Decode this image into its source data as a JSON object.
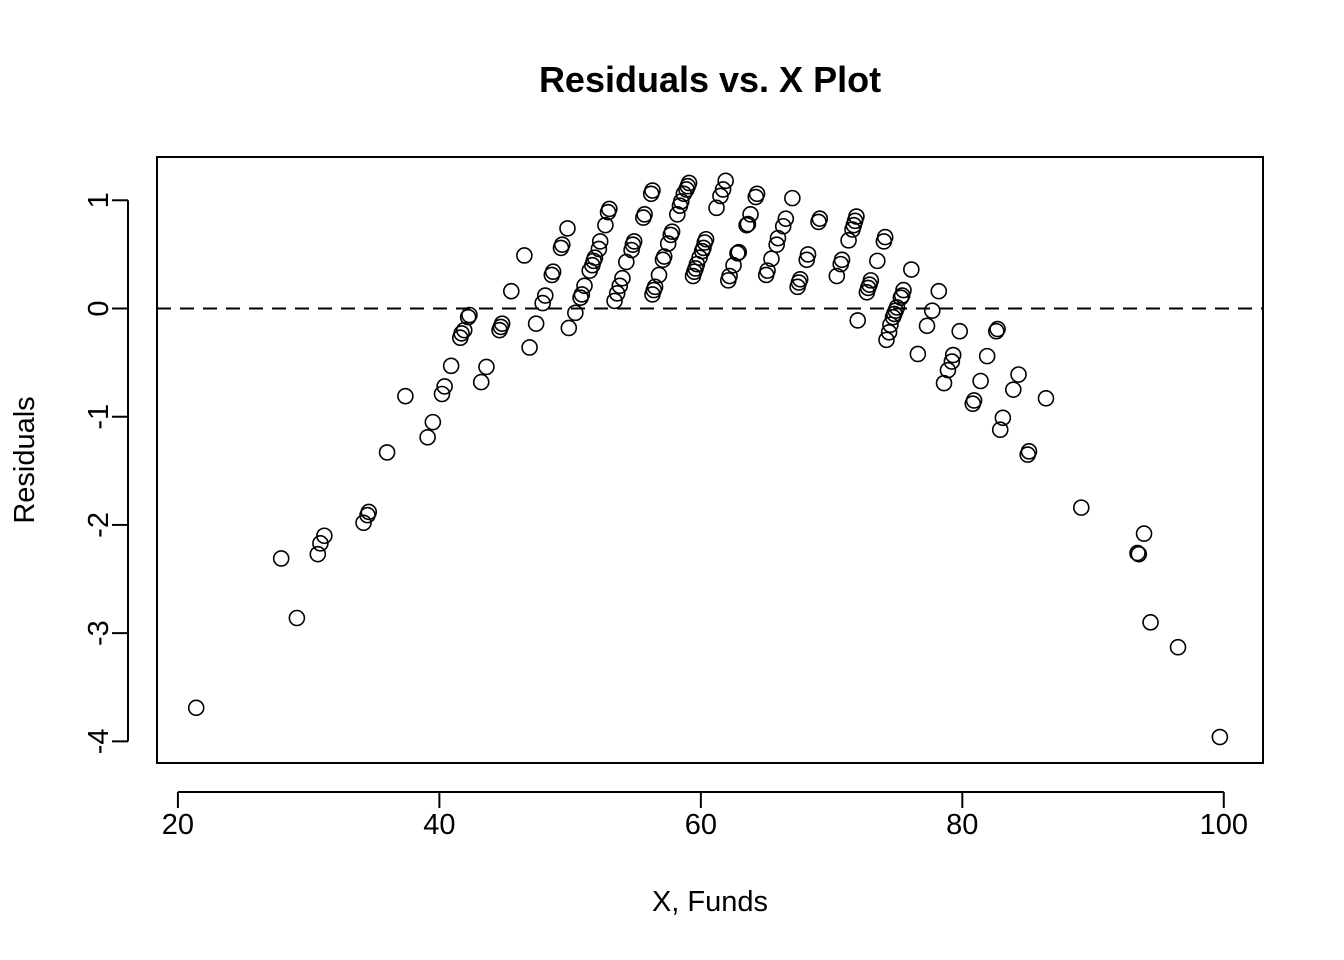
{
  "chart_data": {
    "type": "scatter",
    "title": "Residuals vs. X Plot",
    "xlabel": "X, Funds",
    "ylabel": "Residuals",
    "xlim": [
      18.4,
      103.0
    ],
    "ylim": [
      -4.2,
      1.4
    ],
    "xticks": [
      20,
      40,
      60,
      80,
      100
    ],
    "xtick_labels": [
      "20",
      "40",
      "60",
      "80",
      "100"
    ],
    "yticks": [
      -4,
      -3,
      -2,
      -1,
      0,
      1
    ],
    "ytick_labels": [
      "-4",
      "-3",
      "-2",
      "-1",
      "0",
      "1"
    ],
    "reference_line": {
      "y": 0,
      "style": "dashed"
    },
    "grid": false,
    "legend": "none",
    "marker": "open-circle",
    "color": "#000000",
    "points": [
      [
        21.4,
        -3.69
      ],
      [
        27.9,
        -2.31
      ],
      [
        29.1,
        -2.86
      ],
      [
        30.7,
        -2.27
      ],
      [
        30.9,
        -2.17
      ],
      [
        31.2,
        -2.1
      ],
      [
        34.2,
        -1.98
      ],
      [
        34.5,
        -1.91
      ],
      [
        34.6,
        -1.88
      ],
      [
        36.0,
        -1.33
      ],
      [
        37.4,
        -0.81
      ],
      [
        39.1,
        -1.19
      ],
      [
        39.5,
        -1.05
      ],
      [
        40.2,
        -0.79
      ],
      [
        40.4,
        -0.72
      ],
      [
        40.9,
        -0.53
      ],
      [
        41.6,
        -0.27
      ],
      [
        41.7,
        -0.23
      ],
      [
        41.9,
        -0.2
      ],
      [
        42.2,
        -0.08
      ],
      [
        42.3,
        -0.06
      ],
      [
        43.2,
        -0.68
      ],
      [
        43.6,
        -0.54
      ],
      [
        44.6,
        -0.2
      ],
      [
        44.7,
        -0.17
      ],
      [
        44.8,
        -0.14
      ],
      [
        45.5,
        0.16
      ],
      [
        46.5,
        0.49
      ],
      [
        46.9,
        -0.36
      ],
      [
        47.4,
        -0.14
      ],
      [
        47.9,
        0.05
      ],
      [
        48.1,
        0.12
      ],
      [
        48.6,
        0.31
      ],
      [
        48.7,
        0.34
      ],
      [
        49.3,
        0.56
      ],
      [
        49.4,
        0.59
      ],
      [
        49.8,
        0.74
      ],
      [
        49.9,
        -0.18
      ],
      [
        50.4,
        -0.04
      ],
      [
        50.8,
        0.1
      ],
      [
        50.9,
        0.13
      ],
      [
        51.1,
        0.21
      ],
      [
        51.5,
        0.35
      ],
      [
        51.7,
        0.4
      ],
      [
        51.8,
        0.44
      ],
      [
        51.9,
        0.47
      ],
      [
        52.2,
        0.55
      ],
      [
        52.3,
        0.62
      ],
      [
        52.7,
        0.77
      ],
      [
        52.9,
        0.89
      ],
      [
        53.0,
        0.92
      ],
      [
        53.4,
        0.07
      ],
      [
        53.6,
        0.14
      ],
      [
        53.8,
        0.21
      ],
      [
        54.0,
        0.28
      ],
      [
        54.3,
        0.43
      ],
      [
        54.7,
        0.54
      ],
      [
        54.8,
        0.59
      ],
      [
        54.9,
        0.62
      ],
      [
        55.6,
        0.84
      ],
      [
        55.7,
        0.87
      ],
      [
        56.2,
        1.06
      ],
      [
        56.3,
        1.09
      ],
      [
        56.3,
        0.13
      ],
      [
        56.4,
        0.17
      ],
      [
        56.5,
        0.2
      ],
      [
        56.8,
        0.31
      ],
      [
        57.1,
        0.45
      ],
      [
        57.2,
        0.48
      ],
      [
        57.5,
        0.6
      ],
      [
        57.7,
        0.68
      ],
      [
        57.8,
        0.71
      ],
      [
        58.2,
        0.87
      ],
      [
        58.4,
        0.95
      ],
      [
        58.5,
        0.99
      ],
      [
        58.7,
        1.06
      ],
      [
        58.9,
        1.1
      ],
      [
        59.0,
        1.13
      ],
      [
        59.1,
        1.16
      ],
      [
        59.4,
        0.3
      ],
      [
        59.5,
        0.34
      ],
      [
        59.6,
        0.37
      ],
      [
        59.7,
        0.41
      ],
      [
        59.9,
        0.47
      ],
      [
        60.1,
        0.53
      ],
      [
        60.2,
        0.56
      ],
      [
        60.3,
        0.61
      ],
      [
        60.4,
        0.64
      ],
      [
        61.2,
        0.93
      ],
      [
        61.5,
        1.04
      ],
      [
        61.7,
        1.1
      ],
      [
        61.9,
        1.18
      ],
      [
        62.1,
        0.26
      ],
      [
        62.2,
        0.3
      ],
      [
        62.5,
        0.4
      ],
      [
        62.8,
        0.51
      ],
      [
        62.9,
        0.52
      ],
      [
        63.5,
        0.77
      ],
      [
        63.6,
        0.78
      ],
      [
        63.8,
        0.87
      ],
      [
        64.2,
        1.03
      ],
      [
        64.3,
        1.06
      ],
      [
        65.0,
        0.31
      ],
      [
        65.1,
        0.35
      ],
      [
        65.4,
        0.46
      ],
      [
        65.8,
        0.59
      ],
      [
        65.9,
        0.65
      ],
      [
        66.3,
        0.76
      ],
      [
        66.5,
        0.83
      ],
      [
        67.0,
        1.02
      ],
      [
        67.4,
        0.2
      ],
      [
        67.5,
        0.24
      ],
      [
        67.6,
        0.27
      ],
      [
        68.1,
        0.45
      ],
      [
        68.2,
        0.5
      ],
      [
        69.0,
        0.8
      ],
      [
        69.1,
        0.83
      ],
      [
        70.4,
        0.3
      ],
      [
        70.7,
        0.41
      ],
      [
        70.8,
        0.45
      ],
      [
        71.3,
        0.63
      ],
      [
        71.6,
        0.73
      ],
      [
        71.7,
        0.77
      ],
      [
        71.8,
        0.81
      ],
      [
        71.9,
        0.85
      ],
      [
        72.0,
        -0.11
      ],
      [
        72.7,
        0.15
      ],
      [
        72.8,
        0.19
      ],
      [
        72.9,
        0.22
      ],
      [
        73.0,
        0.26
      ],
      [
        73.5,
        0.44
      ],
      [
        74.0,
        0.62
      ],
      [
        74.1,
        0.66
      ],
      [
        74.2,
        -0.29
      ],
      [
        74.4,
        -0.22
      ],
      [
        74.5,
        -0.15
      ],
      [
        74.7,
        -0.08
      ],
      [
        74.8,
        -0.05
      ],
      [
        74.9,
        -0.02
      ],
      [
        75.0,
        0.01
      ],
      [
        75.3,
        0.1
      ],
      [
        75.4,
        0.12
      ],
      [
        75.5,
        0.17
      ],
      [
        76.1,
        0.36
      ],
      [
        76.6,
        -0.42
      ],
      [
        77.3,
        -0.16
      ],
      [
        77.7,
        -0.02
      ],
      [
        78.2,
        0.16
      ],
      [
        78.6,
        -0.69
      ],
      [
        78.9,
        -0.57
      ],
      [
        79.2,
        -0.49
      ],
      [
        79.3,
        -0.43
      ],
      [
        79.8,
        -0.21
      ],
      [
        80.8,
        -0.88
      ],
      [
        80.9,
        -0.85
      ],
      [
        81.4,
        -0.67
      ],
      [
        81.9,
        -0.44
      ],
      [
        82.6,
        -0.21
      ],
      [
        82.7,
        -0.19
      ],
      [
        82.9,
        -1.12
      ],
      [
        83.1,
        -1.01
      ],
      [
        83.9,
        -0.75
      ],
      [
        84.3,
        -0.61
      ],
      [
        85.0,
        -1.35
      ],
      [
        85.1,
        -1.32
      ],
      [
        86.4,
        -0.83
      ],
      [
        89.1,
        -1.84
      ],
      [
        93.4,
        -2.26
      ],
      [
        93.5,
        -2.27
      ],
      [
        93.9,
        -2.08
      ],
      [
        94.4,
        -2.9
      ],
      [
        96.5,
        -3.13
      ],
      [
        99.7,
        -3.96
      ]
    ]
  }
}
